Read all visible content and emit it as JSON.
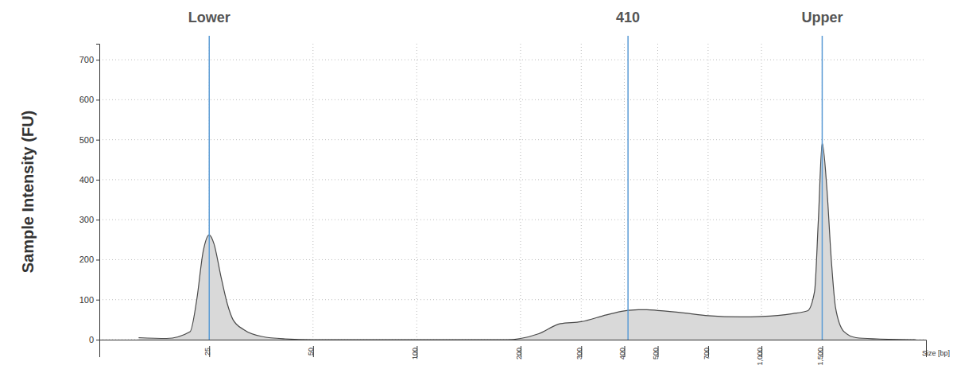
{
  "chart_data": {
    "type": "area",
    "y_label": "Sample Intensity (FU)",
    "x_label": "Size [bp]",
    "log": "x",
    "grid": true,
    "tick_labels": true,
    "xlim": [
      12,
      3000
    ],
    "xticks": [
      25,
      50,
      100,
      200,
      300,
      400,
      500,
      700,
      {
        "value": 1000,
        "label": "1,000"
      },
      {
        "value": 1500,
        "label": "1,500"
      }
    ],
    "ylim": [
      0,
      740
    ],
    "yticks": [
      0,
      100,
      200,
      300,
      400,
      500,
      600,
      700
    ],
    "x": [
      15.6,
      18.8,
      22,
      23,
      24,
      25,
      25.8,
      27,
      28.2,
      29.3,
      31.5,
      35.5,
      41.5,
      50,
      100,
      183,
      200,
      226,
      261,
      300,
      355,
      400,
      439,
      465,
      500,
      594,
      700,
      870,
      1000,
      1230,
      1360,
      1425,
      1462,
      1500,
      1547,
      1594,
      1640,
      1735,
      1880,
      2160,
      2800
    ],
    "series": [
      {
        "name": "Sample",
        "color": "#d9d9d9",
        "values": [
          5,
          3,
          20,
          100,
          220,
          262,
          240,
          160,
          90,
          50,
          25,
          8,
          2,
          0,
          0,
          0,
          3,
          15,
          40,
          45,
          62,
          72,
          75,
          75,
          73,
          67,
          60,
          57,
          58,
          65,
          72,
          120,
          300,
          492,
          380,
          200,
          80,
          20,
          5,
          2,
          0
        ]
      }
    ],
    "peaks": [
      {
        "label": "Lower",
        "x": 25
      },
      {
        "label": "410",
        "x": 410
      },
      {
        "label": "Upper",
        "x": 1500
      }
    ],
    "peak_color": "#5b9bd5"
  }
}
